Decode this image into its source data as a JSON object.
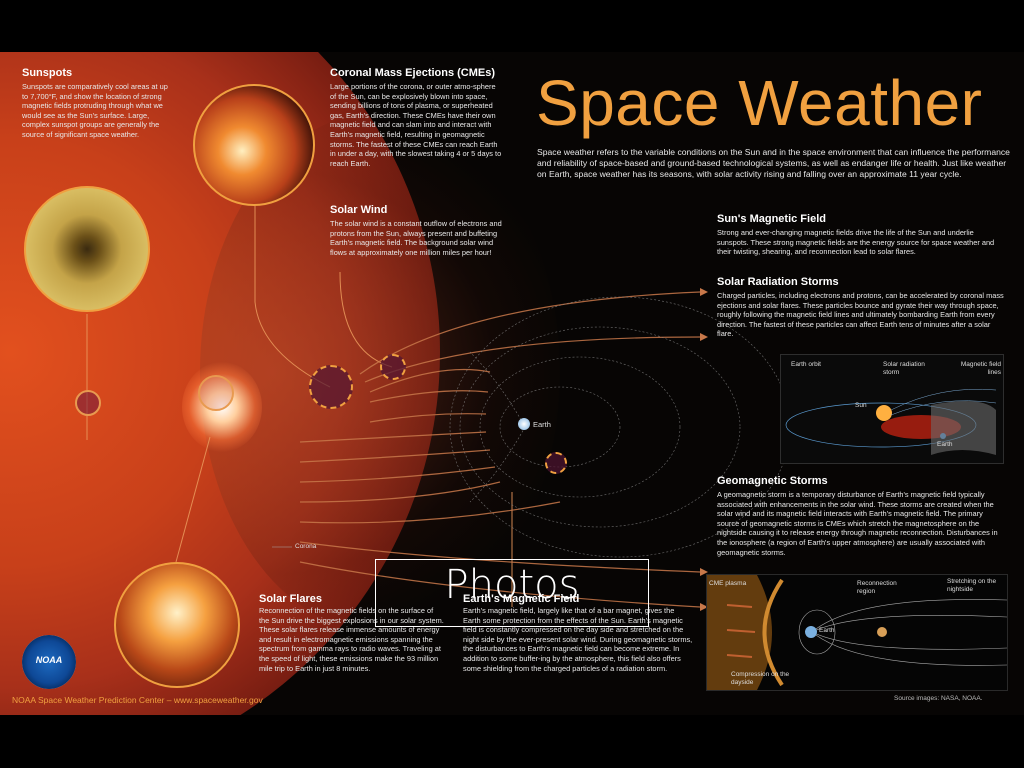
{
  "poster": {
    "title": "Space Weather",
    "intro": "Space weather refers to the variable conditions on the Sun and in the space environment that can influence the performance and reliability of space-based and ground-based technological systems, as well as endanger life or health. Just like weather on Earth, space weather has its seasons, with solar activity rising and falling over an approximate 11 year cycle.",
    "sections": {
      "sunspots": {
        "title": "Sunspots",
        "text": "Sunspots are comparatively cool areas at up to 7,700°F, and show the location of strong magnetic fields protruding through what we would see as the Sun's surface. Large, complex sunspot groups are generally the source of significant space weather."
      },
      "cme": {
        "title": "Coronal Mass Ejections (CMEs)",
        "text": "Large portions of the corona, or outer atmo-sphere of the Sun, can be explosively blown into space, sending billions of tons of plasma, or superheated gas, Earth's direction. These CMEs have their own magnetic field and can slam into and interact with Earth's magnetic field, resulting in geomagnetic storms. The fastest of these CMEs can reach Earth in under a day, with the slowest taking 4 or 5 days to reach Earth."
      },
      "solar_wind": {
        "title": "Solar Wind",
        "text": "The solar wind is a constant outflow of electrons and protons from the Sun, always present and buffeting Earth's magnetic field. The background solar wind flows at approximately one million miles per hour!"
      },
      "suns_magnetic_field": {
        "title": "Sun's Magnetic Field",
        "text": "Strong and ever-changing magnetic fields drive the life of the Sun and underlie sunspots. These strong magnetic fields are the energy source for space weather and their twisting, shearing, and reconnection lead to solar flares."
      },
      "solar_radiation_storms": {
        "title": "Solar Radiation Storms",
        "text": "Charged particles, including electrons and protons, can be accelerated by coronal mass ejections and solar flares. These particles bounce and gyrate their way through space, roughly following the magnetic field lines and ultimately bombarding Earth from every direction. The fastest of these particles can affect Earth tens of minutes after a solar flare."
      },
      "geomagnetic_storms": {
        "title": "Geomagnetic Storms",
        "text": "A geomagnetic storm is a temporary disturbance of Earth's magnetic field typically associated with enhancements in the solar wind. These storms are created when the solar wind and its magnetic field interacts with Earth's magnetic field. The primary source of geomagnetic storms is CMEs which stretch the magnetosphere on the nightside causing it to release energy through magnetic reconnection. Disturbances in the ionosphere (a region of Earth's upper atmosphere) are usually associated with geomagnetic storms."
      },
      "solar_flares": {
        "title": "Solar Flares",
        "text": "Reconnection of the magnetic fields on the surface of the Sun drive the biggest explosions in our solar system. These solar flares release immense amounts of energy and result in electromagnetic emissions spanning the spectrum from gamma rays to radio waves. Traveling at the speed of light, these emissions make the 93 million mile trip to Earth in just 8 minutes."
      },
      "earths_magnetic_field": {
        "title": "Earth's Magnetic Field",
        "text": "Earth's magnetic field, largely like that of a bar magnet, gives the Earth some protection from the effects of the Sun. Earth's magnetic field is constantly compressed on the day side and stretched on the night side by the ever-present solar wind. During geomagnetic storms, the disturbances to Earth's magnetic field can become extreme. In addition to some buffer-ing by the atmosphere, this field also offers some shielding from the charged particles of a radiation storm."
      }
    },
    "labels": {
      "earth": "Earth",
      "corona": "Corona",
      "rad_earth_orbit": "Earth orbit",
      "rad_solar_radiation_storm": "Solar radiation storm",
      "rad_magnetic_field_lines": "Magnetic field lines",
      "rad_sun": "Sun",
      "rad_earth": "Earth",
      "geo_cme_plasma": "CME plasma",
      "geo_reconnection_region": "Reconnection region",
      "geo_stretching": "Stretching on the nightside",
      "geo_earth": "Earth",
      "geo_compression": "Compression on the dayside"
    },
    "logo": "NOAA",
    "footer": "NOAA Space Weather Prediction Center – www.spaceweather.gov",
    "source": "Source images: NASA, NOAA."
  },
  "overlay": {
    "label": "Photos"
  },
  "colors": {
    "accent": "#f0a040",
    "background": "#000000"
  }
}
